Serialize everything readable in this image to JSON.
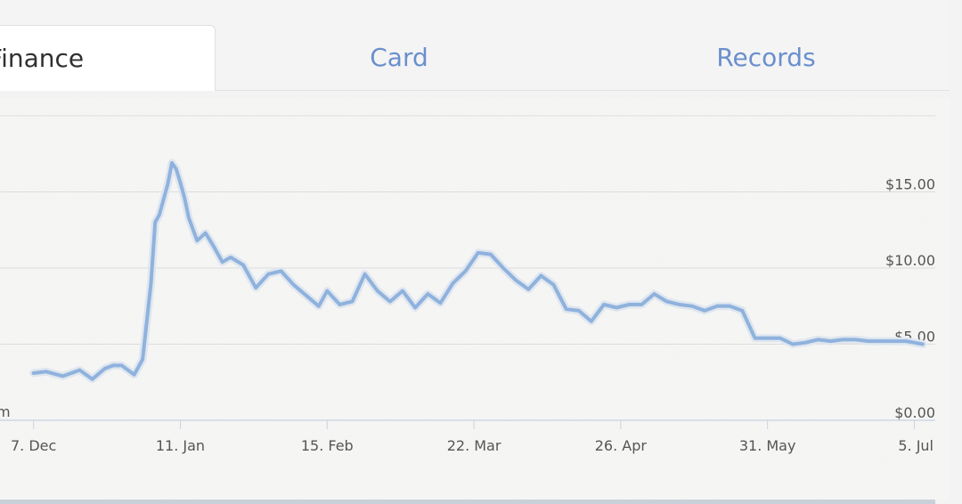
{
  "tabs": [
    {
      "id": "finance",
      "label": "Finance",
      "active": true
    },
    {
      "id": "card",
      "label": "Card",
      "active": false
    },
    {
      "id": "records",
      "label": "Records",
      "active": false
    }
  ],
  "chart_data": {
    "type": "line",
    "title": "",
    "xlabel": "",
    "ylabel": "",
    "ylim": [
      0,
      18
    ],
    "grid": true,
    "y_ticks": [
      "$0.00",
      "$5.00",
      "$10.00",
      "$15.00"
    ],
    "y_tick_values": [
      0,
      5,
      10,
      15
    ],
    "x_ticks": [
      "7. Dec",
      "11. Jan",
      "15. Feb",
      "22. Mar",
      "26. Apr",
      "31. May",
      "5. Jul"
    ],
    "x_tick_dates": [
      "2013-12-07",
      "2014-01-11",
      "2014-02-15",
      "2014-03-22",
      "2014-04-26",
      "2014-05-31",
      "2014-07-05"
    ],
    "axis_fragment": "m",
    "line_color": "#8fb2dd",
    "series": [
      {
        "x": [
          "2013-12-07",
          "2013-12-10",
          "2013-12-14",
          "2013-12-18",
          "2013-12-21",
          "2013-12-24",
          "2013-12-26",
          "2013-12-28",
          "2013-12-31",
          "2014-01-02",
          "2014-01-04",
          "2014-01-05",
          "2014-01-06",
          "2014-01-08",
          "2014-01-09",
          "2014-01-10",
          "2014-01-11",
          "2014-01-12",
          "2014-01-13",
          "2014-01-15",
          "2014-01-17",
          "2014-01-19",
          "2014-01-21",
          "2014-01-23",
          "2014-01-26",
          "2014-01-29",
          "2014-02-01",
          "2014-02-04",
          "2014-02-07",
          "2014-02-10",
          "2014-02-13",
          "2014-02-15",
          "2014-02-18",
          "2014-02-21",
          "2014-02-24",
          "2014-02-27",
          "2014-03-02",
          "2014-03-05",
          "2014-03-08",
          "2014-03-11",
          "2014-03-14",
          "2014-03-17",
          "2014-03-20",
          "2014-03-23",
          "2014-03-26",
          "2014-03-29",
          "2014-04-01",
          "2014-04-04",
          "2014-04-07",
          "2014-04-10",
          "2014-04-13",
          "2014-04-16",
          "2014-04-19",
          "2014-04-22",
          "2014-04-25",
          "2014-04-28",
          "2014-05-01",
          "2014-05-04",
          "2014-05-07",
          "2014-05-10",
          "2014-05-13",
          "2014-05-16",
          "2014-05-19",
          "2014-05-22",
          "2014-05-25",
          "2014-05-28",
          "2014-05-31",
          "2014-06-03",
          "2014-06-06",
          "2014-06-09",
          "2014-06-12",
          "2014-06-15",
          "2014-06-18",
          "2014-06-21",
          "2014-06-24",
          "2014-06-27",
          "2014-06-30",
          "2014-07-03",
          "2014-07-05",
          "2014-07-07"
        ],
        "y": [
          3.1,
          3.2,
          2.9,
          3.3,
          2.7,
          3.4,
          3.6,
          3.6,
          3.0,
          4.0,
          9.0,
          13.0,
          13.5,
          15.5,
          16.9,
          16.5,
          15.6,
          14.6,
          13.3,
          11.8,
          12.3,
          11.4,
          10.4,
          10.7,
          10.2,
          8.7,
          9.6,
          9.8,
          8.9,
          8.2,
          7.5,
          8.5,
          7.6,
          7.8,
          9.6,
          8.5,
          7.8,
          8.5,
          7.4,
          8.3,
          7.7,
          9.0,
          9.8,
          11.0,
          10.9,
          10.0,
          9.2,
          8.6,
          9.5,
          8.9,
          7.3,
          7.2,
          6.5,
          7.6,
          7.4,
          7.6,
          7.6,
          8.3,
          7.8,
          7.6,
          7.5,
          7.2,
          7.5,
          7.5,
          7.2,
          5.4,
          5.4,
          5.4,
          5.0,
          5.1,
          5.3,
          5.2,
          5.3,
          5.3,
          5.2,
          5.2,
          5.2,
          5.2,
          5.1,
          5.0
        ]
      }
    ]
  }
}
